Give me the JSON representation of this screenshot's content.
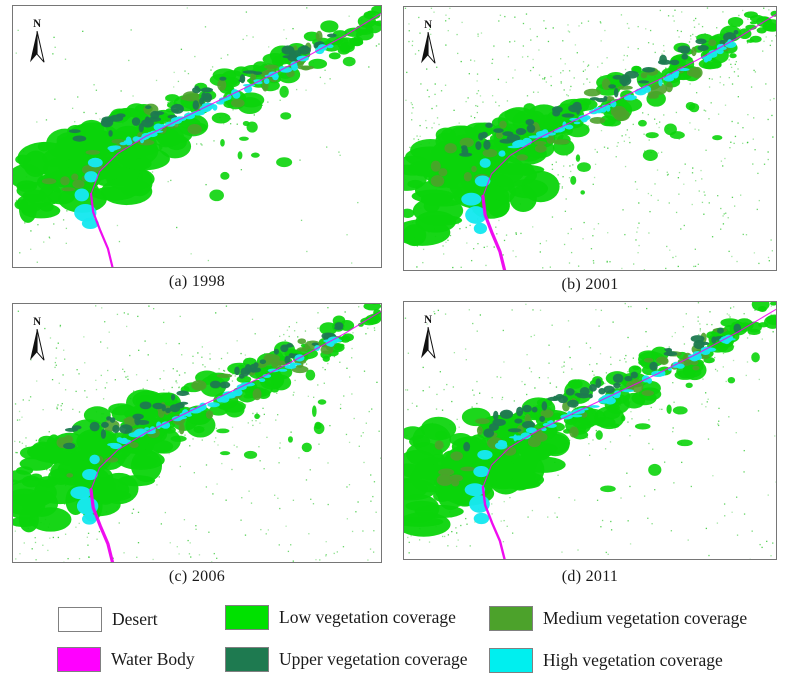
{
  "figure": {
    "type": "map-figure",
    "background": "#ffffff",
    "panel_border": "#767676"
  },
  "north_label": "N",
  "panels": [
    {
      "id": "a",
      "caption": "(a) 1998",
      "year": "1998"
    },
    {
      "id": "b",
      "caption": "(b) 2001",
      "year": "2001"
    },
    {
      "id": "c",
      "caption": "(c) 2006",
      "year": "2006"
    },
    {
      "id": "d",
      "caption": "(d) 2011",
      "year": "2011"
    }
  ],
  "legend": {
    "swatch_border": "#808080",
    "items": [
      {
        "name": "desert",
        "label": "Desert",
        "color": "#ffffff"
      },
      {
        "name": "water-body",
        "label": "Water Body",
        "color": "#ff00ff"
      },
      {
        "name": "low-vegetation",
        "label": "Low vegetation coverage",
        "color": "#00e100"
      },
      {
        "name": "upper-vegetation",
        "label": "Upper vegetation coverage",
        "color": "#1e7a50"
      },
      {
        "name": "medium-vegetation",
        "label": "Medium vegetation coverage",
        "color": "#4ca22b"
      },
      {
        "name": "high-vegetation",
        "label": "High vegetation coverage",
        "color": "#00efef"
      }
    ]
  },
  "map_colors": {
    "desert": "#ffffff",
    "water": "#ee00ee",
    "low": "#0bd40b",
    "medium": "#4ca22b",
    "upper": "#1e7a50",
    "high": "#17e8ef",
    "speckle": "#2cc52c",
    "arrow": "#111111"
  }
}
